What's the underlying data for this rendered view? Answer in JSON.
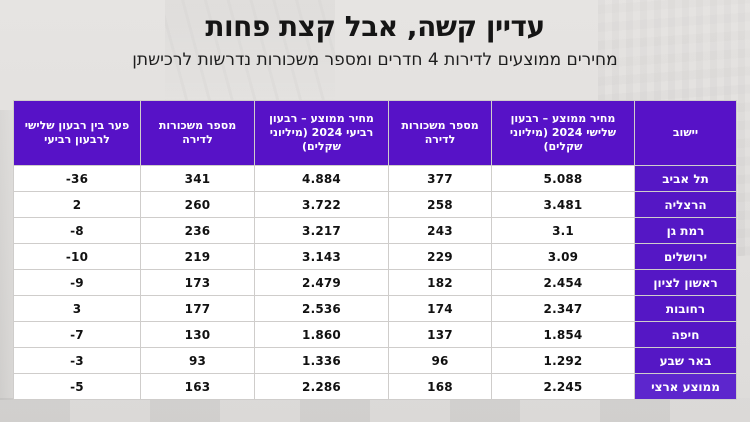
{
  "page": {
    "title": "עדיין קשה, אבל קצת פחות",
    "subtitle": "מחירים ממוצעים לדירות 4 חדרים ומספר משכורות נדרשות לרכישתן"
  },
  "colors": {
    "header_purple": "#5712c7",
    "city_purple": "#5517c5",
    "footer_purple": "#5d26cd",
    "cell_bg": "#ffffff",
    "grid_line": "#cfcdcb",
    "value_text": "#111111"
  },
  "chart_data": {
    "type": "table",
    "title": "עדיין קשה, אבל קצת פחות",
    "subtitle": "מחירים ממוצעים לדירות 4 חדרים ומספר משכורות נדרשות לרכישתן",
    "direction": "rtl",
    "legend_position": "none",
    "grid": true,
    "columns": [
      "יישוב",
      "מחיר ממוצע – רבעון שלישי 2024 (מיליוני שקלים)",
      "מספר משכורות לדירה",
      "מחיר ממוצע – רבעון רביעי 2024 (מיליוני שקלים)",
      "מספר משכורות לדירה",
      "פער בין רבעון שלישי לרבעון רביעי"
    ],
    "rows": [
      [
        "תל אביב",
        "5.088",
        "377",
        "4.884",
        "341",
        "-36"
      ],
      [
        "הרצליה",
        "3.481",
        "258",
        "3.722",
        "260",
        "2"
      ],
      [
        "רמת גן",
        "3.1",
        "243",
        "3.217",
        "236",
        "-8"
      ],
      [
        "ירושלים",
        "3.09",
        "229",
        "3.143",
        "219",
        "-10"
      ],
      [
        "ראשון לציון",
        "2.454",
        "182",
        "2.479",
        "173",
        "-9"
      ],
      [
        "רחובות",
        "2.347",
        "174",
        "2.536",
        "177",
        "3"
      ],
      [
        "חיפה",
        "1.854",
        "137",
        "1.860",
        "130",
        "-7"
      ],
      [
        "באר שבע",
        "1.292",
        "96",
        "1.336",
        "93",
        "-3"
      ],
      [
        "ממוצע ארצי",
        "2.245",
        "168",
        "2.286",
        "163",
        "-5"
      ]
    ],
    "footer_row_label": "ממוצע ארצי"
  }
}
